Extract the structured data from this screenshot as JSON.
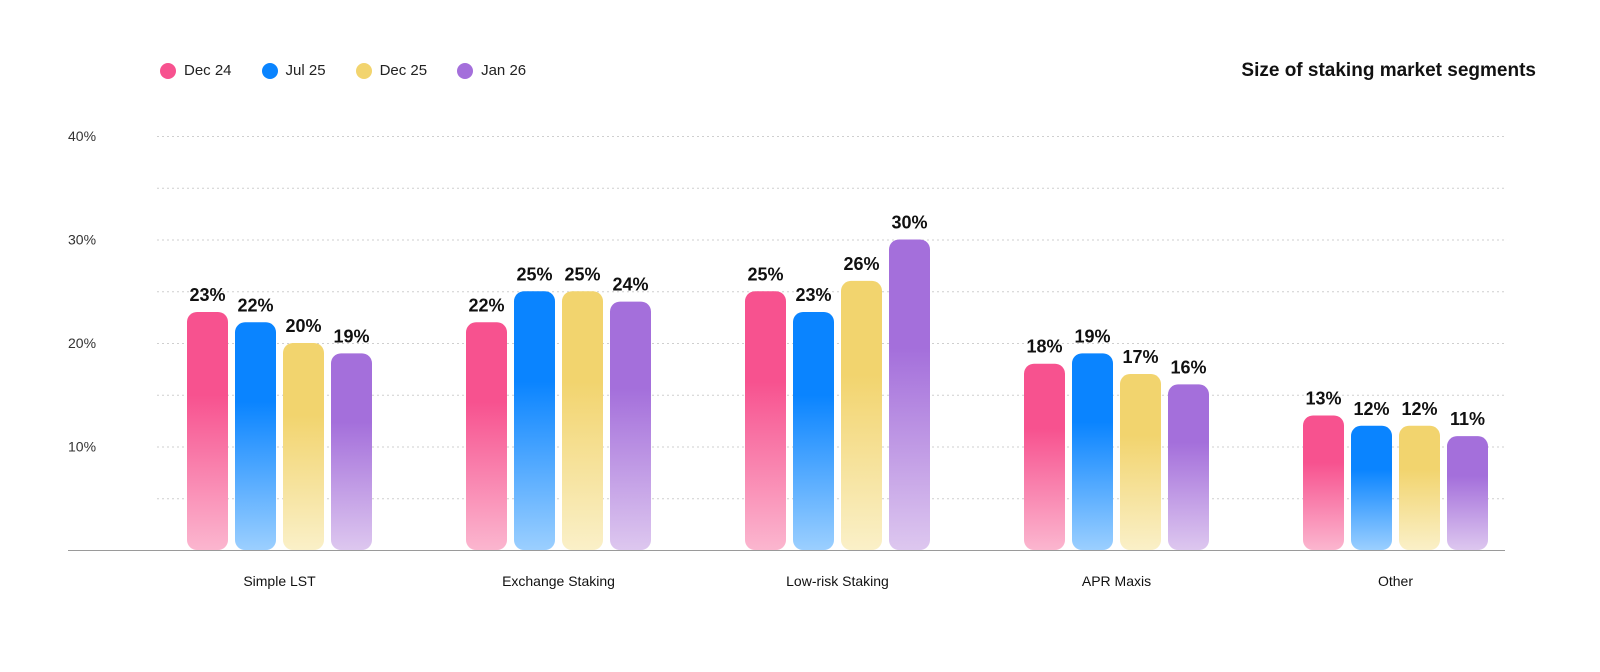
{
  "title": "Size of staking market segments",
  "chart_data": {
    "type": "bar",
    "title": "Size of staking market segments",
    "xlabel": "",
    "ylabel": "",
    "categories": [
      "Simple LST",
      "Exchange Staking",
      "Low-risk Staking",
      "APR Maxis",
      "Other"
    ],
    "ylim": [
      0,
      40
    ],
    "y_ticks": [
      "10%",
      "20%",
      "30%",
      "40%"
    ],
    "grid": "horizontal dotted",
    "legend_position": "top-left",
    "series": [
      {
        "name": "Dec 24",
        "color": "#F7528F",
        "values": [
          23,
          22,
          25,
          18,
          13
        ],
        "labels": [
          "23%",
          "22%",
          "25%",
          "18%",
          "13%"
        ]
      },
      {
        "name": "Jul 25",
        "color": "#0A84FF",
        "values": [
          22,
          25,
          23,
          19,
          12
        ],
        "labels": [
          "22%",
          "25%",
          "23%",
          "19%",
          "12%"
        ]
      },
      {
        "name": "Dec 25",
        "color": "#F2D46E",
        "values": [
          20,
          25,
          26,
          17,
          12
        ],
        "labels": [
          "20%",
          "25%",
          "26%",
          "17%",
          "12%"
        ]
      },
      {
        "name": "Jan 26",
        "color": "#A46FDB",
        "values": [
          19,
          24,
          30,
          16,
          11
        ],
        "labels": [
          "19%",
          "24%",
          "30%",
          "16%",
          "11%"
        ]
      }
    ]
  }
}
